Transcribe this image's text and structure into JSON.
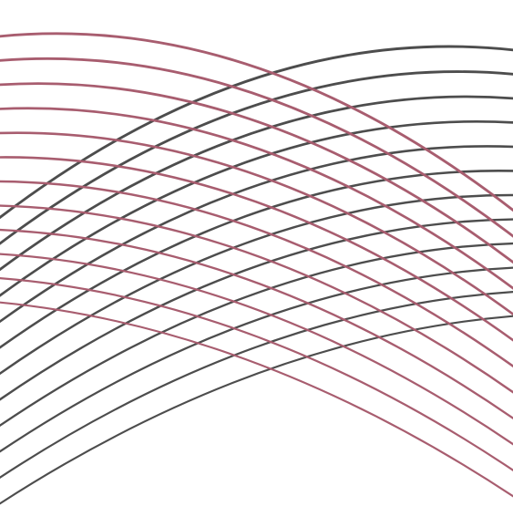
{
  "pattern": {
    "colors": {
      "background": "#ffffff",
      "rose": "#a85d6f",
      "dark": "#4d4d4d"
    }
  }
}
